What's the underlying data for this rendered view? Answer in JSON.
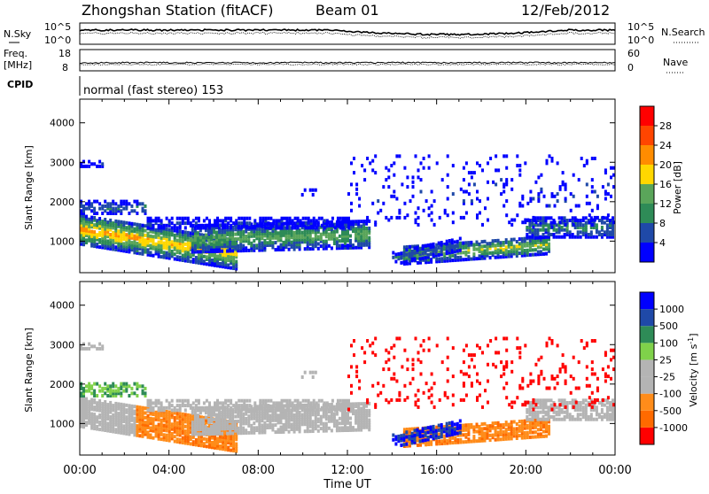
{
  "header": {
    "title": "Zhongshan Station (fitACF)",
    "beam": "Beam 01",
    "date": "12/Feb/2012"
  },
  "top_panels": {
    "nsky_label": "N.Sky",
    "nsky_ticks": [
      "10^5",
      "10^0"
    ],
    "nsearch_label": "N.Search",
    "nsearch_ticks": [
      "10^5",
      "10^0"
    ],
    "freq_label": "Freq.",
    "freq_unit": "[MHz]",
    "freq_ticks": [
      "18",
      "8"
    ],
    "nave_label": "Nave",
    "nave_ticks": [
      "60",
      "0"
    ],
    "cpid_label": "CPID",
    "cpid_value": "normal (fast stereo) 153"
  },
  "colors": {
    "power": [
      "#0000ff",
      "#1f49a8",
      "#2e8b57",
      "#5aa55a",
      "#ffd700",
      "#ff8c00",
      "#ff4500",
      "#ff0000"
    ],
    "velocity": [
      "#ff0000",
      "#ff6a00",
      "#ff8c1a",
      "#b4b4b4",
      "#b4b4b4",
      "#7fd14a",
      "#2e8b57",
      "#1f49a8",
      "#0000ff"
    ]
  },
  "chart_data": [
    {
      "type": "heatmap",
      "name": "power",
      "xlabel": "Time UT",
      "ylabel": "Slant Range [km]",
      "x_ticks": [
        "00:00",
        "04:00",
        "08:00",
        "12:00",
        "16:00",
        "20:00",
        "00:00"
      ],
      "y_ticks": [
        1000,
        2000,
        3000,
        4000
      ],
      "ylim": [
        200,
        4600
      ],
      "xlim_hours": [
        0,
        24
      ],
      "colorbar": {
        "label": "Power [dB]",
        "ticks": [
          4,
          8,
          12,
          16,
          20,
          24,
          28
        ],
        "range": [
          0,
          32
        ]
      }
    },
    {
      "type": "heatmap",
      "name": "velocity",
      "xlabel": "Time UT",
      "ylabel": "Slant Range [km]",
      "x_ticks": [
        "00:00",
        "04:00",
        "08:00",
        "12:00",
        "16:00",
        "20:00",
        "00:00"
      ],
      "y_ticks": [
        1000,
        2000,
        3000,
        4000
      ],
      "ylim": [
        200,
        4600
      ],
      "xlim_hours": [
        0,
        24
      ],
      "colorbar": {
        "label": "Velocity [m s",
        "label_sup": "-1",
        "ticks": [
          "1000",
          "500",
          "100",
          "25",
          "-25",
          "-100",
          "-500",
          "-1000"
        ]
      }
    }
  ]
}
